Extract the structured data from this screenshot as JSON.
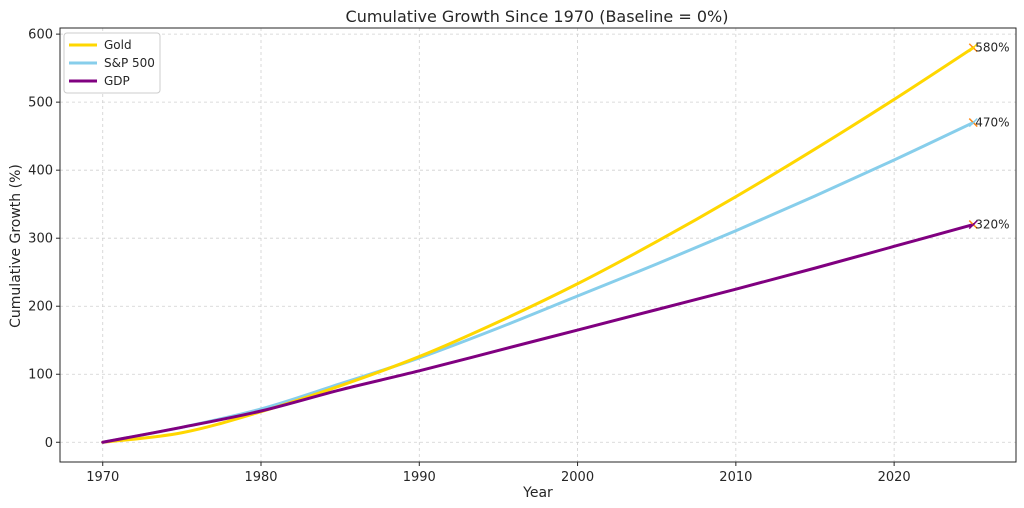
{
  "chart_data": {
    "type": "line",
    "title": "Cumulative Growth Since 1970 (Baseline = 0%)",
    "xlabel": "Year",
    "ylabel": "Cumulative Growth (%)",
    "xlim": [
      1967.3,
      2027.7
    ],
    "ylim": [
      -29,
      609
    ],
    "xticks": [
      1970,
      1980,
      1990,
      2000,
      2010,
      2020
    ],
    "yticks": [
      0,
      100,
      200,
      300,
      400,
      500,
      600
    ],
    "grid": true,
    "legend_position": "top-left",
    "series": [
      {
        "name": "Gold",
        "color": "#FFD700",
        "x": [
          1970,
          1975,
          1980,
          1985,
          1990,
          1995,
          2000,
          2005,
          2010,
          2015,
          2020,
          2025
        ],
        "values": [
          0,
          14,
          45,
          83,
          126,
          177,
          233,
          295,
          361,
          431,
          504,
          580
        ],
        "end_label": "580%"
      },
      {
        "name": "S&P 500",
        "color": "#87CEEB",
        "x": [
          1970,
          1975,
          1980,
          1985,
          1990,
          1995,
          2000,
          2005,
          2010,
          2015,
          2020,
          2025
        ],
        "values": [
          0,
          22,
          49,
          86,
          124,
          168,
          215,
          262,
          311,
          362,
          415,
          470
        ],
        "end_label": "470%"
      },
      {
        "name": "GDP",
        "color": "#800080",
        "x": [
          1970,
          1975,
          1980,
          1985,
          1990,
          1995,
          2000,
          2005,
          2010,
          2015,
          2020,
          2025
        ],
        "values": [
          0,
          22,
          46,
          77,
          105,
          135,
          165,
          195,
          225,
          256,
          288,
          320
        ],
        "end_label": "320%"
      }
    ]
  }
}
